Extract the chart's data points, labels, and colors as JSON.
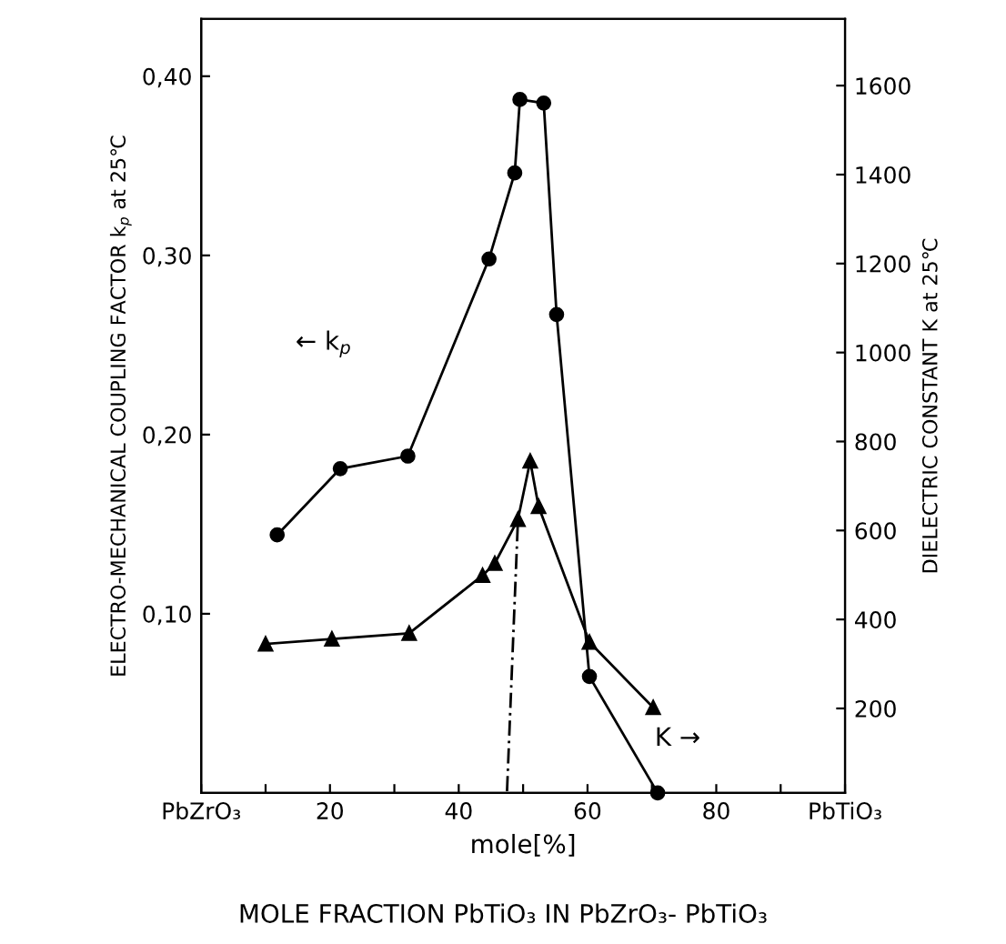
{
  "chart_data": {
    "type": "line",
    "xlabel": "mole[%]",
    "ylabel": "ELECTRO-MECHANICAL COUPLING FACTOR k$_{p}$ at 25℃",
    "y2label": "DIELECTRIC CONSTANT K at 25℃",
    "xlim": [
      0,
      100
    ],
    "xticks": [
      {
        "value": 0,
        "label": "PbZrO₃"
      },
      {
        "value": 10,
        "label": null
      },
      20,
      {
        "value": 30,
        "label": null
      },
      40,
      {
        "value": 50,
        "label": null
      },
      60,
      {
        "value": 70,
        "label": null
      },
      80,
      {
        "value": 90,
        "label": null
      },
      {
        "value": 100,
        "label": "PbTiO₃"
      }
    ],
    "ylim": [
      0,
      0.432
    ],
    "yticks": [
      {
        "value": 0.1,
        "label": "0,10"
      },
      {
        "value": 0.2,
        "label": "0,20"
      },
      {
        "value": 0.3,
        "label": "0,30"
      },
      {
        "value": 0.4,
        "label": "0,40"
      }
    ],
    "y2lim": [
      10,
      1750
    ],
    "y2ticks": [
      200,
      400,
      600,
      800,
      1000,
      1200,
      1400,
      1600
    ],
    "grid": false,
    "legend": false,
    "series": [
      {
        "color": "#000000",
        "marker": "circle",
        "line_style": "solid",
        "x": [
          11.8,
          21.6,
          32.1,
          44.7,
          48.7,
          49.5,
          53.2,
          55.2,
          60.3,
          70.9
        ],
        "values": [
          0.144,
          0.181,
          0.188,
          0.298,
          0.346,
          0.387,
          0.385,
          0.267,
          0.065,
          0.0
        ]
      },
      {
        "color": "#000000",
        "marker": "triangle",
        "line_style": "solid",
        "axis": "y2",
        "x": [
          10,
          20.3,
          32.3,
          43.7,
          45.6,
          49.2,
          51.1,
          52.4,
          60.3,
          70.2
        ],
        "values": [
          345,
          356,
          369,
          499,
          526,
          625,
          756,
          654,
          349,
          202
        ]
      },
      {
        "color": "#000000",
        "marker": "none",
        "line_style": "dashed",
        "axis": "y2",
        "x": [
          47.5,
          49.2
        ],
        "values": [
          14,
          625
        ]
      }
    ],
    "annotations": [
      "← k$_{p}$",
      "K →",
      "MOLE FRACTION PbTiO₃ IN PbZrO₃- PbTiO₃"
    ]
  }
}
